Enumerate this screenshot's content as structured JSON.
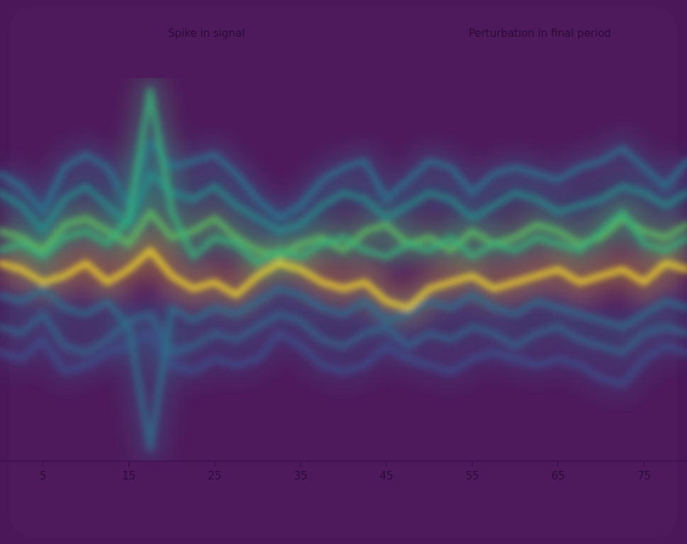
{
  "chart_data": {
    "type": "line",
    "x": [
      0,
      2.5,
      5,
      7.5,
      10,
      12.5,
      15,
      17.5,
      20,
      22.5,
      25,
      27.5,
      30,
      32.5,
      35,
      37.5,
      40,
      42.5,
      45,
      47.5,
      50,
      52.5,
      55,
      57.5,
      60,
      62.5,
      65,
      67.5,
      70,
      72.5,
      75,
      77.5,
      80
    ],
    "series": [
      {
        "color": "#fde725",
        "values": [
          0.1,
          0.0,
          -0.2,
          -0.1,
          0.1,
          -0.2,
          0.0,
          0.3,
          -0.1,
          -0.3,
          -0.2,
          -0.4,
          -0.1,
          0.1,
          0.0,
          -0.2,
          -0.3,
          -0.2,
          -0.5,
          -0.6,
          -0.3,
          -0.2,
          -0.1,
          -0.3,
          -0.2,
          -0.1,
          0.0,
          -0.2,
          -0.1,
          0.0,
          -0.2,
          0.1,
          0.0
        ]
      },
      {
        "color": "#5ec962",
        "values": [
          0.6,
          0.5,
          0.3,
          0.7,
          0.8,
          0.6,
          0.4,
          0.9,
          0.5,
          0.6,
          0.8,
          0.5,
          0.3,
          0.2,
          0.4,
          0.5,
          0.3,
          0.6,
          0.7,
          0.4,
          0.5,
          0.3,
          0.6,
          0.4,
          0.5,
          0.7,
          0.6,
          0.4,
          0.5,
          0.8,
          0.6,
          0.5,
          0.7
        ]
      },
      {
        "color": "#21918c",
        "values": [
          1.2,
          1.0,
          0.6,
          1.1,
          1.3,
          1.0,
          0.7,
          1.5,
          1.2,
          1.1,
          1.3,
          1.0,
          0.8,
          0.6,
          0.7,
          1.0,
          1.2,
          1.1,
          0.8,
          1.0,
          1.2,
          1.1,
          0.8,
          1.0,
          1.2,
          1.1,
          0.9,
          1.0,
          1.1,
          1.3,
          1.2,
          1.0,
          1.2
        ]
      },
      {
        "color": "#2a788e",
        "values": [
          1.5,
          1.3,
          0.9,
          1.6,
          1.8,
          1.6,
          1.0,
          2.0,
          1.6,
          1.7,
          1.8,
          1.5,
          1.1,
          0.8,
          1.0,
          1.4,
          1.6,
          1.7,
          1.1,
          1.4,
          1.7,
          1.6,
          1.2,
          1.5,
          1.6,
          1.5,
          1.4,
          1.6,
          1.7,
          1.9,
          1.6,
          1.3,
          1.7
        ]
      },
      {
        "color": "#31688e",
        "values": [
          -0.9,
          -1.0,
          -0.7,
          -1.2,
          -1.3,
          -1.1,
          -0.8,
          -0.7,
          -1.3,
          -1.2,
          -1.0,
          -1.1,
          -0.9,
          -0.7,
          -0.8,
          -1.1,
          -1.2,
          -1.0,
          -0.9,
          -1.2,
          -1.0,
          -1.1,
          -0.9,
          -1.0,
          -1.2,
          -1.0,
          -0.9,
          -1.1,
          -1.2,
          -1.3,
          -1.0,
          -0.9,
          -1.0
        ]
      },
      {
        "color": "#3b528b",
        "values": [
          -1.3,
          -1.4,
          -1.1,
          -1.6,
          -1.5,
          -1.3,
          -1.2,
          -1.0,
          -1.5,
          -1.6,
          -1.4,
          -1.5,
          -1.4,
          -1.0,
          -1.2,
          -1.5,
          -1.6,
          -1.5,
          -1.2,
          -1.4,
          -1.5,
          -1.6,
          -1.4,
          -1.3,
          -1.4,
          -1.5,
          -1.4,
          -1.5,
          -1.7,
          -1.8,
          -1.4,
          -1.2,
          -1.3
        ]
      },
      {
        "color": "#35b779",
        "values": [
          0.3,
          0.4,
          0.2,
          0.5,
          0.6,
          0.4,
          0.8,
          2.8,
          0.9,
          0.2,
          0.5,
          0.4,
          0.1,
          0.3,
          0.2,
          0.4,
          0.5,
          0.3,
          0.2,
          0.4,
          0.3,
          0.5,
          0.2,
          0.4,
          0.3,
          0.5,
          0.4,
          0.3,
          0.6,
          0.9,
          0.4,
          0.3,
          0.5
        ]
      },
      {
        "color": "#2c728e",
        "values": [
          -0.4,
          -0.5,
          -0.3,
          -0.6,
          -0.7,
          -0.5,
          -0.9,
          -2.8,
          -0.6,
          -0.8,
          -0.6,
          -0.7,
          -0.5,
          -0.3,
          -0.4,
          -0.6,
          -0.7,
          -0.5,
          -0.8,
          -0.7,
          -0.5,
          -0.6,
          -0.4,
          -0.6,
          -0.7,
          -0.5,
          -0.6,
          -0.7,
          -0.8,
          -0.9,
          -0.7,
          -0.5,
          -0.6
        ]
      }
    ],
    "annotations": [
      {
        "text": "Spike in signal",
        "x": 17.5
      },
      {
        "text": "Perturbation in final period",
        "x": 52.5
      }
    ],
    "xlim": [
      0,
      80
    ],
    "xticks": [
      5,
      15,
      25,
      35,
      45,
      55,
      65,
      75
    ],
    "ylim": [
      -3,
      3
    ],
    "tick_labels": "x",
    "grid": false
  }
}
